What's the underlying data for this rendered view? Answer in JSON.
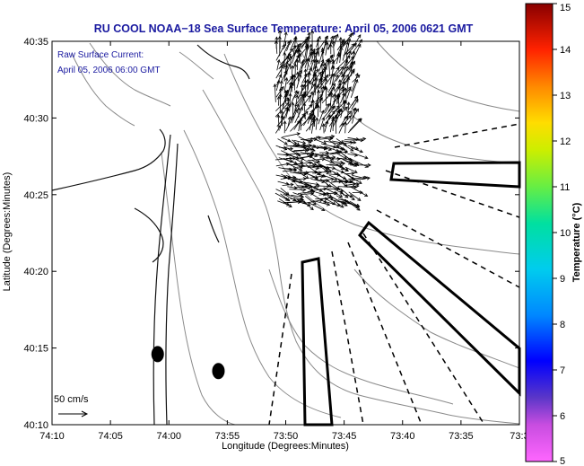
{
  "chart_data": {
    "type": "scatter",
    "title": "RU COOL  NOAA−18  Sea Surface Temperature:  April 05, 2006 0621 GMT",
    "xlabel": "Longitude (Degrees:Minutes)",
    "ylabel": "Latitude (Degrees:Minutes)",
    "x_tick_labels": [
      "74:10",
      "74:05",
      "74:00",
      "73:55",
      "73:50",
      "73:45",
      "73:40",
      "73:35",
      "73:3"
    ],
    "y_tick_labels": [
      "40:35",
      "40:30",
      "40:25",
      "40:20",
      "40:15",
      "40:10"
    ],
    "x_range_minutes_west": [
      190,
      140
    ],
    "y_range_minutes_north": [
      10,
      35
    ],
    "annotations": {
      "current_label_line1": "Raw Surface Current:",
      "current_label_line2": "April 05, 2006 06:00 GMT",
      "scale_label": "50 cm/s"
    },
    "colorbar": {
      "label": "Temperature (°C)",
      "min": 5,
      "max": 15,
      "tick_labels": [
        "15",
        "14",
        "13",
        "12",
        "11",
        "10",
        "9",
        "8",
        "7",
        "6",
        "5"
      ]
    },
    "markers": [
      {
        "name": "dot-1",
        "x": 178.7,
        "y": 14.6
      },
      {
        "name": "dot-2",
        "x": 172.2,
        "y": 13.5
      }
    ],
    "current_vectors_region": {
      "lon_min": 166.0,
      "lon_max": 158.0,
      "lat_min": 24.5,
      "lat_max": 34.5
    },
    "grid": false,
    "colors": {
      "title": "#1a1aa0",
      "contour": "#888888",
      "coast": "#111111",
      "frame": "#000000"
    }
  }
}
